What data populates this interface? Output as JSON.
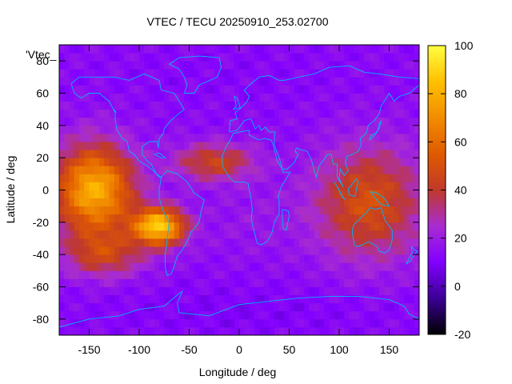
{
  "chart_data": {
    "type": "heatmap",
    "title": "VTEC / TECU 20250910_253.02700",
    "xlabel": "Longitude / deg",
    "ylabel": "Latitude / deg",
    "xlim": [
      -180,
      180
    ],
    "ylim": [
      -90,
      90
    ],
    "xticks": [
      -150,
      -100,
      -50,
      0,
      50,
      100,
      150
    ],
    "yticks": [
      -80,
      -60,
      -40,
      -20,
      0,
      20,
      40,
      60,
      80
    ],
    "colorbar": {
      "min": -20,
      "max": 100,
      "ticks": [
        -20,
        0,
        20,
        40,
        60,
        80,
        100
      ],
      "palette": [
        "#000000",
        "#3c0096",
        "#8200ff",
        "#a82cd2",
        "#c0392b",
        "#e05a00",
        "#f28c00",
        "#ffc000",
        "#ffff40"
      ]
    },
    "key_label": "'Vtec_",
    "coastline_color": "#00b4ff",
    "regions": [
      {
        "lon": [
          -180,
          -110
        ],
        "lat": [
          -25,
          25
        ],
        "vtec": 80
      },
      {
        "lon": [
          -100,
          -60
        ],
        "lat": [
          -30,
          -15
        ],
        "vtec": 88
      },
      {
        "lon": [
          -170,
          -100
        ],
        "lat": [
          -50,
          -30
        ],
        "vtec": 42
      },
      {
        "lon": [
          -60,
          10
        ],
        "lat": [
          10,
          25
        ],
        "vtec": 45
      },
      {
        "lon": [
          -30,
          60
        ],
        "lat": [
          -40,
          5
        ],
        "vtec": 18
      },
      {
        "lon": [
          80,
          180
        ],
        "lat": [
          -40,
          25
        ],
        "vtec": 50
      },
      {
        "lon": [
          -180,
          180
        ],
        "lat": [
          50,
          90
        ],
        "vtec": 12
      },
      {
        "lon": [
          -180,
          180
        ],
        "lat": [
          -90,
          -60
        ],
        "vtec": 10
      }
    ]
  }
}
